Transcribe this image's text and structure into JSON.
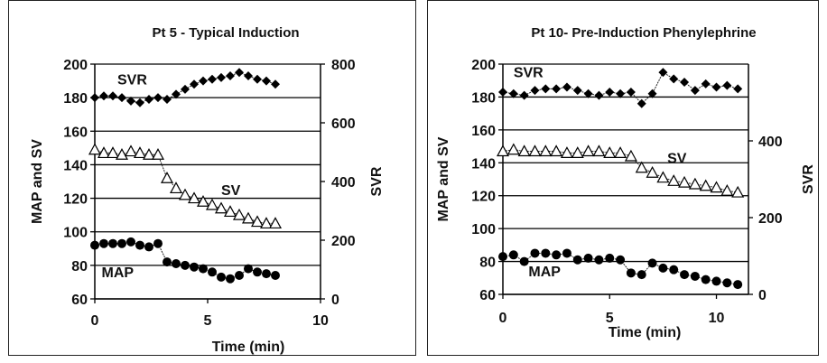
{
  "chart_data": [
    {
      "type": "line",
      "title": "Pt 5 - Typical Induction",
      "xlabel": "Time (min)",
      "ylabel": "MAP and SV",
      "y2label": "SVR",
      "xlim": [
        0,
        10
      ],
      "ylim": [
        60,
        200
      ],
      "y2lim": [
        0,
        800
      ],
      "x_ticks": [
        "0",
        "5",
        "10"
      ],
      "y_ticks": [
        "60",
        "80",
        "100",
        "120",
        "140",
        "160",
        "180",
        "200"
      ],
      "y2_ticks": [
        "0",
        "200",
        "400",
        "600",
        "800"
      ],
      "grid": "horizontal",
      "series": [
        {
          "name": "SVR",
          "axis": "y",
          "marker": "diamond",
          "label_at": [
            1.0,
            188
          ],
          "x": [
            0.0,
            0.4,
            0.8,
            1.2,
            1.6,
            2.0,
            2.4,
            2.8,
            3.2,
            3.6,
            4.0,
            4.4,
            4.8,
            5.2,
            5.6,
            6.0,
            6.4,
            6.8,
            7.2,
            7.6,
            8.0
          ],
          "y": [
            180,
            181,
            181,
            180,
            178,
            177,
            179,
            180,
            179,
            182,
            185,
            188,
            190,
            191,
            192,
            193,
            195,
            193,
            191,
            190,
            188
          ]
        },
        {
          "name": "SV",
          "axis": "y",
          "marker": "triangle",
          "label_at": [
            5.6,
            122
          ],
          "x": [
            0.0,
            0.4,
            0.8,
            1.2,
            1.6,
            2.0,
            2.4,
            2.8,
            3.2,
            3.6,
            4.0,
            4.4,
            4.8,
            5.2,
            5.6,
            6.0,
            6.4,
            6.8,
            7.2,
            7.6,
            8.0
          ],
          "y": [
            149,
            147,
            147,
            146,
            148,
            147,
            146,
            146,
            132,
            126,
            122,
            120,
            118,
            116,
            114,
            112,
            110,
            108,
            106,
            105,
            105
          ]
        },
        {
          "name": "MAP",
          "axis": "y",
          "marker": "circle",
          "label_at": [
            0.3,
            73
          ],
          "x": [
            0.0,
            0.4,
            0.8,
            1.2,
            1.6,
            2.0,
            2.4,
            2.8,
            3.2,
            3.6,
            4.0,
            4.4,
            4.8,
            5.2,
            5.6,
            6.0,
            6.4,
            6.8,
            7.2,
            7.6,
            8.0
          ],
          "y": [
            92,
            93,
            93,
            93,
            94,
            92,
            91,
            93,
            82,
            81,
            80,
            79,
            78,
            76,
            73,
            72,
            74,
            78,
            76,
            75,
            74
          ]
        }
      ]
    },
    {
      "type": "line",
      "title": "Pt 10- Pre-Induction Phenylephrine",
      "xlabel": "Time (min)",
      "ylabel": "MAP and SV",
      "y2label": "SVR",
      "xlim": [
        0,
        11.5
      ],
      "ylim": [
        60,
        200
      ],
      "y2lim": [
        0,
        600
      ],
      "x_ticks": [
        "0",
        "5",
        "10"
      ],
      "y_ticks": [
        "60",
        "80",
        "100",
        "120",
        "140",
        "160",
        "180",
        "200"
      ],
      "y2_ticks": [
        "0",
        "200",
        "400"
      ],
      "grid": "horizontal",
      "series": [
        {
          "name": "SVR",
          "axis": "y",
          "marker": "diamond",
          "label_at": [
            0.5,
            192
          ],
          "x": [
            0.0,
            0.5,
            1.0,
            1.5,
            2.0,
            2.5,
            3.0,
            3.5,
            4.0,
            4.5,
            5.0,
            5.5,
            6.0,
            6.5,
            7.0,
            7.5,
            8.0,
            8.5,
            9.0,
            9.5,
            10.0,
            10.5,
            11.0
          ],
          "y": [
            183,
            182,
            181,
            184,
            185,
            185,
            186,
            184,
            182,
            181,
            183,
            182,
            183,
            176,
            182,
            195,
            191,
            189,
            184,
            188,
            186,
            187,
            185
          ]
        },
        {
          "name": "SV",
          "axis": "y",
          "marker": "triangle",
          "label_at": [
            7.7,
            140
          ],
          "x": [
            0.0,
            0.5,
            1.0,
            1.5,
            2.0,
            2.5,
            3.0,
            3.5,
            4.0,
            4.5,
            5.0,
            5.5,
            6.0,
            6.5,
            7.0,
            7.5,
            8.0,
            8.5,
            9.0,
            9.5,
            10.0,
            10.5,
            11.0
          ],
          "y": [
            147,
            148,
            147,
            147,
            147,
            147,
            146,
            146,
            147,
            147,
            146,
            146,
            144,
            137,
            134,
            131,
            129,
            128,
            127,
            126,
            125,
            123,
            122
          ]
        },
        {
          "name": "MAP",
          "axis": "y",
          "marker": "circle",
          "label_at": [
            1.2,
            71
          ],
          "x": [
            0.0,
            0.5,
            1.0,
            1.5,
            2.0,
            2.5,
            3.0,
            3.5,
            4.0,
            4.5,
            5.0,
            5.5,
            6.0,
            6.5,
            7.0,
            7.5,
            8.0,
            8.5,
            9.0,
            9.5,
            10.0,
            10.5,
            11.0
          ],
          "y": [
            83,
            84,
            80,
            85,
            85,
            84,
            85,
            81,
            82,
            81,
            82,
            81,
            73,
            72,
            79,
            76,
            75,
            72,
            71,
            69,
            68,
            67,
            66
          ]
        }
      ]
    }
  ]
}
